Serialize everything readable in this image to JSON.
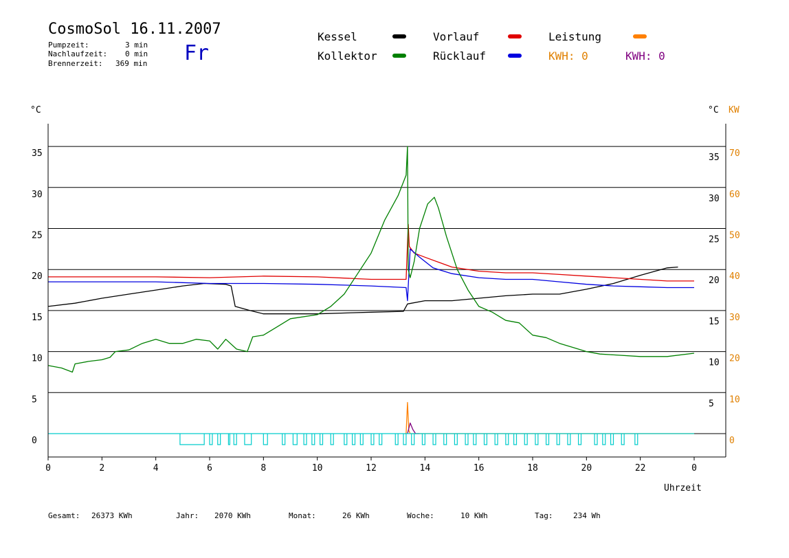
{
  "header": {
    "title": "CosmoSol 16.11.2007",
    "weekday": "Fr",
    "pumpzeit_label": "Pumpzeit:",
    "pumpzeit_value": "3 min",
    "nachlaufzeit_label": "Nachlaufzeit:",
    "nachlaufzeit_value": "0 min",
    "brennerzeit_label": "Brennerzeit:",
    "brennerzeit_value": "369 min"
  },
  "legend": {
    "kessel": "Kessel",
    "kollektor": "Kollektor",
    "vorlauf": "Vorlauf",
    "ruecklauf": "Rücklauf",
    "leistung": "Leistung",
    "kwh1": "KWH: 0",
    "kwh2": "KWH: 0"
  },
  "colors": {
    "kessel": "#000000",
    "kollektor": "#008000",
    "vorlauf": "#e00000",
    "ruecklauf": "#0000e0",
    "leistung": "#ff8000",
    "kwh2": "#800080",
    "pump": "#00cccc"
  },
  "footer": {
    "gesamt_label": "Gesamt:",
    "gesamt_value": "26373 KWh",
    "jahr_label": "Jahr:",
    "jahr_value": "2070 KWh",
    "monat_label": "Monat:",
    "monat_value": "26 KWh",
    "woche_label": "Woche:",
    "woche_value": "10 KWh",
    "tag_label": "Tag:",
    "tag_value": "234 Wh"
  },
  "chart_data": {
    "type": "line",
    "xlabel": "Uhrzeit",
    "ylabel_left": "°C",
    "ylabel_right_c": "°C",
    "ylabel_right_kw": "KW",
    "x_ticks": [
      "0",
      "2",
      "4",
      "6",
      "8",
      "10",
      "12",
      "14",
      "16",
      "18",
      "20",
      "22",
      "0"
    ],
    "y_ticks_left": [
      "0",
      "5",
      "10",
      "15",
      "20",
      "25",
      "30",
      "35"
    ],
    "y_ticks_right_c": [
      "5",
      "10",
      "15",
      "20",
      "25",
      "30",
      "35"
    ],
    "y_ticks_right_kw": [
      "0",
      "10",
      "20",
      "30",
      "40",
      "50",
      "60",
      "70"
    ],
    "xlim": [
      0,
      24
    ],
    "ylim": [
      -2.5,
      38
    ],
    "grid_y": [
      5,
      10,
      15,
      20,
      25,
      30,
      35
    ],
    "series": [
      {
        "key": "kessel",
        "points": [
          [
            0,
            15.5
          ],
          [
            1,
            15.9
          ],
          [
            2,
            16.5
          ],
          [
            3,
            17
          ],
          [
            4,
            17.5
          ],
          [
            5,
            18
          ],
          [
            5.8,
            18.3
          ],
          [
            6.6,
            18.2
          ],
          [
            6.8,
            18
          ],
          [
            6.95,
            15.5
          ],
          [
            7.5,
            15
          ],
          [
            8,
            14.6
          ],
          [
            10,
            14.6
          ],
          [
            12,
            14.8
          ],
          [
            13.2,
            14.9
          ],
          [
            13.35,
            15.8
          ],
          [
            14,
            16.2
          ],
          [
            15,
            16.2
          ],
          [
            16,
            16.5
          ],
          [
            17,
            16.8
          ],
          [
            18,
            17
          ],
          [
            19,
            17
          ],
          [
            20,
            17.6
          ],
          [
            21,
            18.3
          ],
          [
            22,
            19.3
          ],
          [
            23,
            20.2
          ],
          [
            23.4,
            20.3
          ]
        ]
      },
      {
        "key": "vorlauf",
        "points": [
          [
            0,
            19.1
          ],
          [
            2,
            19.1
          ],
          [
            4,
            19.1
          ],
          [
            6,
            19
          ],
          [
            8,
            19.2
          ],
          [
            10,
            19.1
          ],
          [
            12,
            18.8
          ],
          [
            13.3,
            18.8
          ],
          [
            13.38,
            25.5
          ],
          [
            13.42,
            22.8
          ],
          [
            13.6,
            22
          ],
          [
            14,
            21.5
          ],
          [
            15,
            20.3
          ],
          [
            16,
            19.8
          ],
          [
            17,
            19.6
          ],
          [
            18,
            19.6
          ],
          [
            19,
            19.4
          ],
          [
            20,
            19.2
          ],
          [
            21,
            19
          ],
          [
            22,
            18.8
          ],
          [
            23,
            18.6
          ],
          [
            24,
            18.6
          ]
        ]
      },
      {
        "key": "ruecklauf",
        "points": [
          [
            0,
            18.5
          ],
          [
            2,
            18.5
          ],
          [
            4,
            18.5
          ],
          [
            6,
            18.3
          ],
          [
            8,
            18.3
          ],
          [
            10,
            18.2
          ],
          [
            12,
            18
          ],
          [
            13.3,
            17.8
          ],
          [
            13.35,
            16.2
          ],
          [
            13.45,
            22.5
          ],
          [
            13.8,
            21.5
          ],
          [
            14.3,
            20.2
          ],
          [
            15,
            19.5
          ],
          [
            16,
            19
          ],
          [
            17,
            18.8
          ],
          [
            18,
            18.8
          ],
          [
            19,
            18.5
          ],
          [
            20,
            18.2
          ],
          [
            21,
            18
          ],
          [
            22,
            17.9
          ],
          [
            23,
            17.8
          ],
          [
            24,
            17.8
          ]
        ]
      },
      {
        "key": "kollektor",
        "points": [
          [
            0,
            8.3
          ],
          [
            0.5,
            8
          ],
          [
            0.9,
            7.5
          ],
          [
            1,
            8.5
          ],
          [
            1.5,
            8.8
          ],
          [
            2,
            9
          ],
          [
            2.3,
            9.3
          ],
          [
            2.5,
            10
          ],
          [
            3,
            10.2
          ],
          [
            3.5,
            11
          ],
          [
            4,
            11.5
          ],
          [
            4.5,
            11
          ],
          [
            5,
            11
          ],
          [
            5.5,
            11.5
          ],
          [
            6,
            11.3
          ],
          [
            6.3,
            10.3
          ],
          [
            6.6,
            11.5
          ],
          [
            7,
            10.3
          ],
          [
            7.4,
            10
          ],
          [
            7.6,
            11.8
          ],
          [
            8,
            12
          ],
          [
            8.5,
            13
          ],
          [
            9,
            14
          ],
          [
            10,
            14.5
          ],
          [
            10.5,
            15.5
          ],
          [
            11,
            17
          ],
          [
            11.5,
            19.5
          ],
          [
            12,
            22
          ],
          [
            12.5,
            26
          ],
          [
            13,
            29
          ],
          [
            13.3,
            31.5
          ],
          [
            13.35,
            35
          ],
          [
            13.38,
            20
          ],
          [
            13.45,
            19
          ],
          [
            13.6,
            21
          ],
          [
            13.8,
            25
          ],
          [
            14.1,
            28
          ],
          [
            14.35,
            28.8
          ],
          [
            14.5,
            27.5
          ],
          [
            14.8,
            24
          ],
          [
            15.2,
            20
          ],
          [
            15.6,
            17.5
          ],
          [
            16,
            15.5
          ],
          [
            16.5,
            14.8
          ],
          [
            17,
            13.8
          ],
          [
            17.5,
            13.5
          ],
          [
            18,
            12
          ],
          [
            18.5,
            11.7
          ],
          [
            19,
            11
          ],
          [
            19.5,
            10.5
          ],
          [
            20,
            10
          ],
          [
            20.5,
            9.7
          ],
          [
            21,
            9.6
          ],
          [
            22,
            9.4
          ],
          [
            23,
            9.4
          ],
          [
            24,
            9.8
          ]
        ]
      },
      {
        "key": "leistung",
        "points": [
          [
            13.25,
            0
          ],
          [
            13.3,
            0
          ],
          [
            13.35,
            3.8
          ],
          [
            13.4,
            0.4
          ],
          [
            13.45,
            0
          ],
          [
            24,
            0
          ]
        ]
      },
      {
        "key": "kwh2",
        "points": [
          [
            13.35,
            0
          ],
          [
            13.45,
            1.3
          ],
          [
            13.55,
            0.5
          ],
          [
            13.65,
            0
          ],
          [
            13.8,
            0
          ]
        ]
      }
    ],
    "pump_pulses": [
      [
        4.9,
        5.8
      ],
      [
        6.0,
        6.1
      ],
      [
        6.3,
        6.4
      ],
      [
        6.7,
        6.75
      ],
      [
        6.9,
        7.0
      ],
      [
        7.3,
        7.55
      ],
      [
        8.0,
        8.15
      ],
      [
        8.7,
        8.8
      ],
      [
        9.1,
        9.25
      ],
      [
        9.5,
        9.6
      ],
      [
        9.8,
        9.9
      ],
      [
        10.1,
        10.2
      ],
      [
        10.5,
        10.6
      ],
      [
        11.0,
        11.1
      ],
      [
        11.3,
        11.4
      ],
      [
        11.6,
        11.7
      ],
      [
        12.0,
        12.1
      ],
      [
        12.3,
        12.4
      ],
      [
        12.9,
        13.0
      ],
      [
        13.2,
        13.3
      ],
      [
        13.5,
        13.6
      ],
      [
        13.9,
        14.0
      ],
      [
        14.3,
        14.4
      ],
      [
        14.7,
        14.8
      ],
      [
        15.1,
        15.2
      ],
      [
        15.5,
        15.6
      ],
      [
        15.8,
        15.9
      ],
      [
        16.2,
        16.3
      ],
      [
        16.6,
        16.7
      ],
      [
        17.0,
        17.1
      ],
      [
        17.3,
        17.4
      ],
      [
        17.7,
        17.8
      ],
      [
        18.1,
        18.2
      ],
      [
        18.5,
        18.6
      ],
      [
        18.9,
        19.0
      ],
      [
        19.3,
        19.4
      ],
      [
        19.7,
        19.8
      ],
      [
        20.3,
        20.4
      ],
      [
        20.6,
        20.7
      ],
      [
        20.9,
        21.0
      ],
      [
        21.3,
        21.4
      ],
      [
        21.8,
        21.9
      ]
    ]
  }
}
